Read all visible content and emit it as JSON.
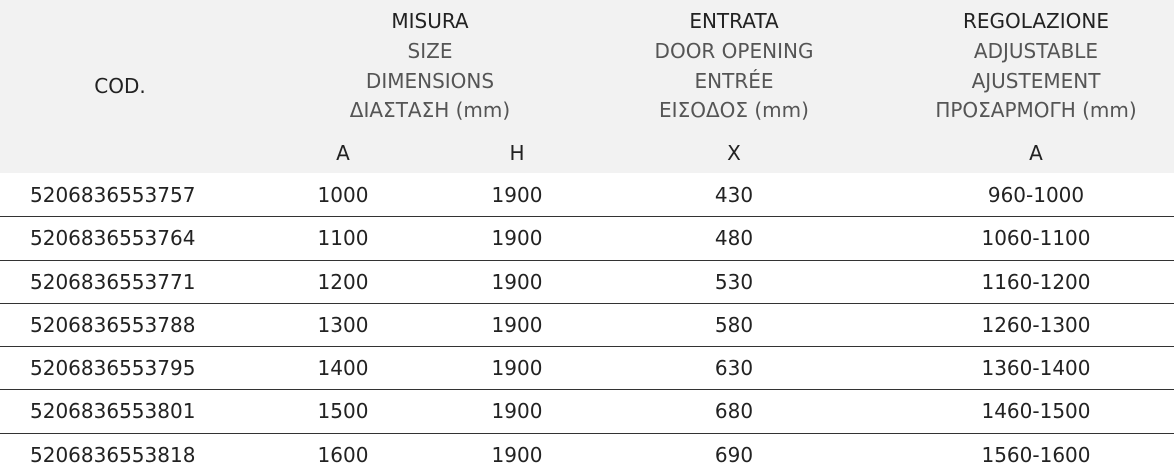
{
  "header": {
    "cod": "COD.",
    "groups": [
      {
        "lines": [
          "MISURA",
          "SIZE",
          "DIMENSIONS",
          "ΔΙΑΣΤΑΣΗ (mm)"
        ],
        "subs": [
          "A",
          "H"
        ]
      },
      {
        "lines": [
          "ENTRATA",
          "DOOR OPENING",
          "ENTRÉE",
          "ΕΙΣΟΔΟΣ (mm)"
        ],
        "subs": [
          "X"
        ]
      },
      {
        "lines": [
          "REGOLAZIONE",
          "ADJUSTABLE",
          "AJUSTEMENT",
          "ΠΡΟΣΑΡΜΟΓΗ (mm)"
        ],
        "subs": [
          "A"
        ]
      }
    ]
  },
  "rows": [
    {
      "cod": "5206836553757",
      "a": "1000",
      "h": "1900",
      "x": "430",
      "adj": "960-1000"
    },
    {
      "cod": "5206836553764",
      "a": "1100",
      "h": "1900",
      "x": "480",
      "adj": "1060-1100"
    },
    {
      "cod": "5206836553771",
      "a": "1200",
      "h": "1900",
      "x": "530",
      "adj": "1160-1200"
    },
    {
      "cod": "5206836553788",
      "a": "1300",
      "h": "1900",
      "x": "580",
      "adj": "1260-1300"
    },
    {
      "cod": "5206836553795",
      "a": "1400",
      "h": "1900",
      "x": "630",
      "adj": "1360-1400"
    },
    {
      "cod": "5206836553801",
      "a": "1500",
      "h": "1900",
      "x": "680",
      "adj": "1460-1500"
    },
    {
      "cod": "5206836553818",
      "a": "1600",
      "h": "1900",
      "x": "690",
      "adj": "1560-1600"
    }
  ]
}
